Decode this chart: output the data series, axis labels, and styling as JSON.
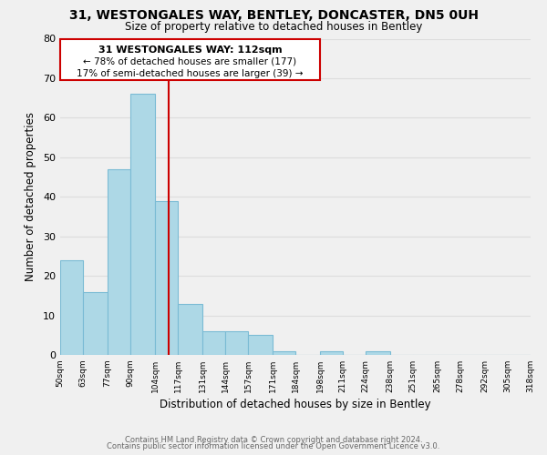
{
  "title_line1": "31, WESTONGALES WAY, BENTLEY, DONCASTER, DN5 0UH",
  "title_line2": "Size of property relative to detached houses in Bentley",
  "xlabel": "Distribution of detached houses by size in Bentley",
  "ylabel": "Number of detached properties",
  "bar_edges": [
    50,
    63,
    77,
    90,
    104,
    117,
    131,
    144,
    157,
    171,
    184,
    198,
    211,
    224,
    238,
    251,
    265,
    278,
    292,
    305,
    318
  ],
  "bar_heights": [
    24,
    16,
    47,
    66,
    39,
    13,
    6,
    6,
    5,
    1,
    0,
    1,
    0,
    1,
    0,
    0,
    0,
    0,
    0,
    0
  ],
  "bar_color": "#add8e6",
  "bar_edgecolor": "#7abbd4",
  "property_line_x": 112,
  "annotation_title": "31 WESTONGALES WAY: 112sqm",
  "annotation_line2": "← 78% of detached houses are smaller (177)",
  "annotation_line3": "17% of semi-detached houses are larger (39) →",
  "ylim": [
    0,
    80
  ],
  "xlim": [
    50,
    318
  ],
  "tick_labels": [
    "50sqm",
    "63sqm",
    "77sqm",
    "90sqm",
    "104sqm",
    "117sqm",
    "131sqm",
    "144sqm",
    "157sqm",
    "171sqm",
    "184sqm",
    "198sqm",
    "211sqm",
    "224sqm",
    "238sqm",
    "251sqm",
    "265sqm",
    "278sqm",
    "292sqm",
    "305sqm",
    "318sqm"
  ],
  "tick_positions": [
    50,
    63,
    77,
    90,
    104,
    117,
    131,
    144,
    157,
    171,
    184,
    198,
    211,
    224,
    238,
    251,
    265,
    278,
    292,
    305,
    318
  ],
  "footer_line1": "Contains HM Land Registry data © Crown copyright and database right 2024.",
  "footer_line2": "Contains public sector information licensed under the Open Government Licence v3.0.",
  "grid_color": "#dddddd",
  "redline_color": "#cc0000",
  "annotation_box_facecolor": "#ffffff",
  "annotation_box_edgecolor": "#cc0000",
  "background_color": "#f0f0f0",
  "yticks": [
    0,
    10,
    20,
    30,
    40,
    50,
    60,
    70,
    80
  ]
}
